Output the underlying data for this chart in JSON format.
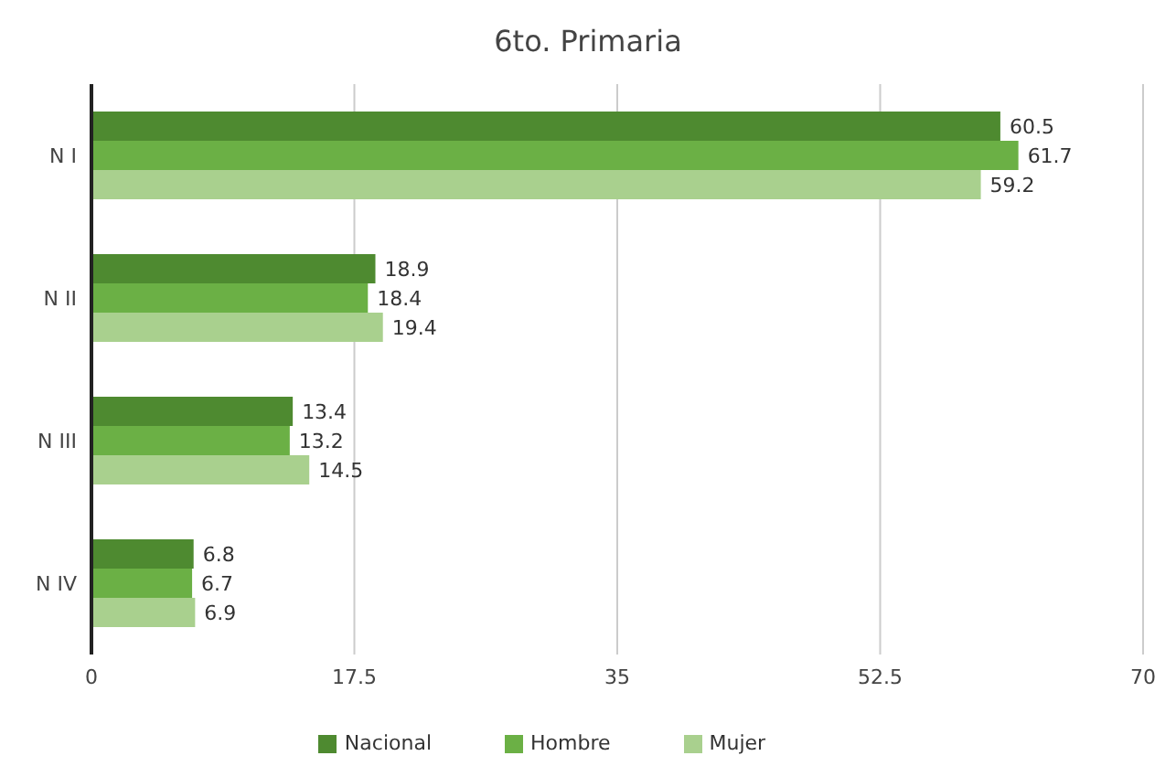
{
  "chart_data": {
    "type": "bar",
    "orientation": "horizontal",
    "title": "6to. Primaria",
    "categories": [
      "N I",
      "N II",
      "N III",
      "N IV"
    ],
    "series": [
      {
        "name": "Nacional",
        "color": "#4e8a30",
        "values": [
          60.5,
          18.9,
          13.4,
          6.8
        ]
      },
      {
        "name": "Hombre",
        "color": "#6bb045",
        "values": [
          61.7,
          18.4,
          13.2,
          6.7
        ]
      },
      {
        "name": "Mujer",
        "color": "#a9d08e",
        "values": [
          59.2,
          19.4,
          14.5,
          6.9
        ]
      }
    ],
    "xlim": [
      0,
      70
    ],
    "xticks": [
      0,
      17.5,
      35,
      52.5,
      70
    ],
    "grid": "x",
    "legend": "bottom",
    "data_labels": true
  }
}
